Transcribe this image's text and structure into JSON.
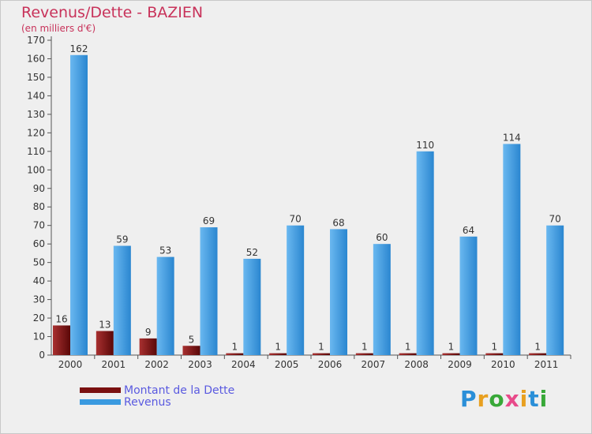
{
  "chart_data": {
    "type": "bar",
    "title": "Revenus/Dette - BAZIEN",
    "subtitle": "(en milliers d'€)",
    "categories": [
      "2000",
      "2001",
      "2002",
      "2003",
      "2004",
      "2005",
      "2006",
      "2007",
      "2008",
      "2009",
      "2010",
      "2011"
    ],
    "series": [
      {
        "name": "Montant de la Dette",
        "values": [
          16,
          13,
          9,
          5,
          1,
          1,
          1,
          1,
          1,
          1,
          1,
          1
        ],
        "color": "#7a1010"
      },
      {
        "name": "Revenus",
        "values": [
          162,
          59,
          53,
          69,
          52,
          70,
          68,
          60,
          110,
          64,
          114,
          70
        ],
        "color": "#3a9ae0"
      }
    ],
    "ylim": [
      0,
      170
    ],
    "yticks": [
      0,
      10,
      20,
      30,
      40,
      50,
      60,
      70,
      80,
      90,
      100,
      110,
      120,
      130,
      140,
      150,
      160,
      170
    ],
    "grid": false,
    "legend_position": "bottom-left"
  },
  "brand": {
    "letters": [
      "P",
      "r",
      "o",
      "x",
      "i",
      "t",
      "i"
    ],
    "colors": [
      "#2a8fd8",
      "#e8a020",
      "#38a838",
      "#e84a8a",
      "#e8a020",
      "#2a8fd8",
      "#38a838"
    ]
  }
}
